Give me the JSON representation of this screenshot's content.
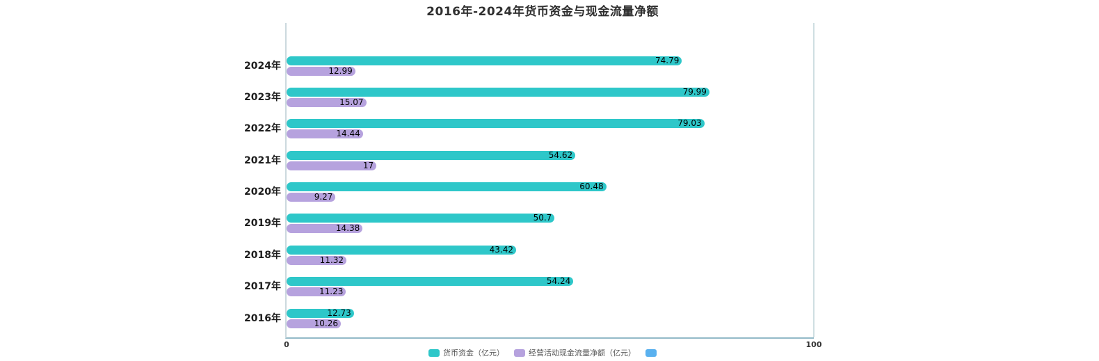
{
  "title": "2016年-2024年货币资金与现金流量净额",
  "chart_data": {
    "type": "bar",
    "orientation": "horizontal",
    "title": "2016年-2024年货币资金与现金流量净额",
    "categories": [
      "2024年",
      "2023年",
      "2022年",
      "2021年",
      "2020年",
      "2019年",
      "2018年",
      "2017年",
      "2016年"
    ],
    "series": [
      {
        "name": "货币资金（亿元）",
        "color": "#2ec7c9",
        "values": [
          74.79,
          79.99,
          79.03,
          54.62,
          60.48,
          50.7,
          43.42,
          54.24,
          12.73
        ]
      },
      {
        "name": "经营活动现金流量净额（亿元）",
        "color": "#b6a2de",
        "values": [
          12.99,
          15.07,
          14.44,
          17,
          9.27,
          14.38,
          11.32,
          11.23,
          10.26
        ]
      }
    ],
    "xlabel": "",
    "ylabel": "",
    "xlim": [
      0,
      100
    ],
    "x_ticks": [
      "0",
      "100"
    ],
    "grid": "off",
    "value_labels": "inside-right",
    "legend_position": "bottom",
    "legend": [
      {
        "label": "货币资金（亿元）",
        "color": "#2ec7c9"
      },
      {
        "label": "经营活动现金流量净额（亿元）",
        "color": "#b6a2de"
      },
      {
        "label": "",
        "color": "#5ab1ef"
      }
    ],
    "colors": {
      "series1": "#2ec7c9",
      "series2": "#b6a2de",
      "legend3": "#5ab1ef",
      "axis_line_bottom": "#93bac8",
      "axis_line_left": "#ccd9de",
      "split_line_right": "#cfdfe2",
      "title_text": "#2f2f2f",
      "value_label_text": "#000000"
    }
  }
}
